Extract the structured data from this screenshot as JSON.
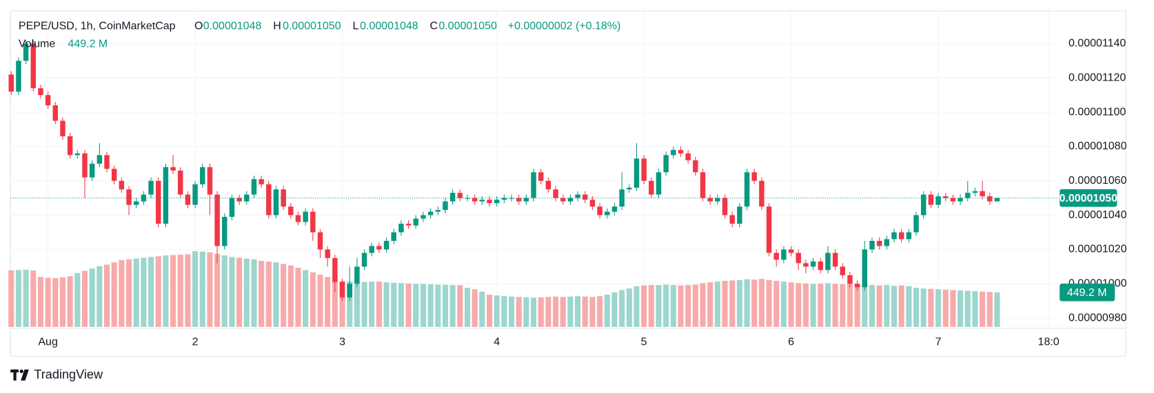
{
  "chart_data": {
    "type": "candlestick",
    "title": "PEPE/USD, 1h, CoinMarketCap",
    "ohlc": [
      {
        "label": "O",
        "value": "0.00001048"
      },
      {
        "label": "H",
        "value": "0.00001050"
      },
      {
        "label": "L",
        "value": "0.00001048"
      },
      {
        "label": "C",
        "value": "0.00001050"
      }
    ],
    "change": "+0.00000002 (+0.18%)",
    "volume_title": "Volume",
    "volume_value_label": "449.2 M",
    "last_price": {
      "value": 1.05e-05,
      "label": "0.00001050"
    },
    "up_color": "#089981",
    "down_color": "#f23645",
    "volume_up_color": "#9cd6cd",
    "volume_down_color": "#f8aaab",
    "grid": true,
    "ylim": [
      9.74e-06,
      1.159e-05
    ],
    "yticks": [
      {
        "value": 9.8e-06,
        "label": "0.00000980"
      },
      {
        "value": 1e-05,
        "label": "0.00001000"
      },
      {
        "value": 1.02e-05,
        "label": "0.00001020"
      },
      {
        "value": 1.04e-05,
        "label": "0.00001040"
      },
      {
        "value": 1.06e-05,
        "label": "0.00001060"
      },
      {
        "value": 1.08e-05,
        "label": "0.00001080"
      },
      {
        "value": 1.1e-05,
        "label": "0.00001100"
      },
      {
        "value": 1.12e-05,
        "label": "0.00001120"
      },
      {
        "value": 1.14e-05,
        "label": "0.00001140"
      }
    ],
    "xlim": [
      -0.1,
      142.5
    ],
    "xticks": [
      {
        "value": 5,
        "label": "Aug"
      },
      {
        "value": 25,
        "label": "2"
      },
      {
        "value": 45,
        "label": "3"
      },
      {
        "value": 66,
        "label": "4"
      },
      {
        "value": 86,
        "label": "5"
      },
      {
        "value": 106,
        "label": "6"
      },
      {
        "value": 126,
        "label": "7"
      },
      {
        "value": 141,
        "label": "18:0"
      }
    ],
    "x": [
      0,
      1,
      2,
      3,
      4,
      5,
      6,
      7,
      8,
      9,
      10,
      11,
      12,
      13,
      14,
      15,
      16,
      17,
      18,
      19,
      20,
      21,
      22,
      23,
      24,
      25,
      26,
      27,
      28,
      29,
      30,
      31,
      32,
      33,
      34,
      35,
      36,
      37,
      38,
      39,
      40,
      41,
      42,
      43,
      44,
      45,
      46,
      47,
      48,
      49,
      50,
      51,
      52,
      53,
      54,
      55,
      56,
      57,
      58,
      59,
      60,
      61,
      62,
      63,
      64,
      65,
      66,
      67,
      68,
      69,
      70,
      71,
      72,
      73,
      74,
      75,
      76,
      77,
      78,
      79,
      80,
      81,
      82,
      83,
      84,
      85,
      86,
      87,
      88,
      89,
      90,
      91,
      92,
      93,
      94,
      95,
      96,
      97,
      98,
      99,
      100,
      101,
      102,
      103,
      104,
      105,
      106,
      107,
      108,
      109,
      110,
      111,
      112,
      113,
      114,
      115,
      116,
      117,
      118,
      119,
      120,
      121,
      122,
      123,
      124,
      125,
      126,
      127,
      128,
      129,
      130,
      131,
      132,
      133,
      134
    ],
    "open": [
      1.122e-05,
      1.112e-05,
      1.13e-05,
      1.14e-05,
      1.114e-05,
      1.11e-05,
      1.104e-05,
      1.095e-05,
      1.086e-05,
      1.075e-05,
      1.076e-05,
      1.062e-05,
      1.07e-05,
      1.075e-05,
      1.067e-05,
      1.06e-05,
      1.055e-05,
      1.046e-05,
      1.048e-05,
      1.052e-05,
      1.06e-05,
      1.035e-05,
      1.068e-05,
      1.066e-05,
      1.052e-05,
      1.046e-05,
      1.058e-05,
      1.068e-05,
      1.052e-05,
      1.022e-05,
      1.039e-05,
      1.05e-05,
      1.048e-05,
      1.052e-05,
      1.061e-05,
      1.058e-05,
      1.04e-05,
      1.055e-05,
      1.045e-05,
      1.04e-05,
      1.036e-05,
      1.042e-05,
      1.03e-05,
      1.02e-05,
      1.015e-05,
      1.001e-05,
      9.92e-06,
      1e-05,
      1.01e-05,
      1.018e-05,
      1.022e-05,
      1.02e-05,
      1.025e-05,
      1.03e-05,
      1.035e-05,
      1.034e-05,
      1.038e-05,
      1.04e-05,
      1.042e-05,
      1.043e-05,
      1.048e-05,
      1.053e-05,
      1.05e-05,
      1.05e-05,
      1.048e-05,
      1.049e-05,
      1.047e-05,
      1.049e-05,
      1.05e-05,
      1.05e-05,
      1.048e-05,
      1.05e-05,
      1.065e-05,
      1.06e-05,
      1.055e-05,
      1.05e-05,
      1.048e-05,
      1.05e-05,
      1.052e-05,
      1.049e-05,
      1.045e-05,
      1.04e-05,
      1.042e-05,
      1.045e-05,
      1.055e-05,
      1.056e-05,
      1.073e-05,
      1.06e-05,
      1.052e-05,
      1.065e-05,
      1.075e-05,
      1.078e-05,
      1.076e-05,
      1.072e-05,
      1.065e-05,
      1.05e-05,
      1.048e-05,
      1.05e-05,
      1.04e-05,
      1.035e-05,
      1.045e-05,
      1.065e-05,
      1.06e-05,
      1.045e-05,
      1.018e-05,
      1.014e-05,
      1.02e-05,
      1.018e-05,
      1.012e-05,
      1.01e-05,
      1.013e-05,
      1.008e-05,
      1.018e-05,
      1.01e-05,
      1.005e-05,
      1e-05,
      9.98e-06,
      1.02e-05,
      1.025e-05,
      1.022e-05,
      1.026e-05,
      1.03e-05,
      1.026e-05,
      1.03e-05,
      1.04e-05,
      1.052e-05,
      1.046e-05,
      1.051e-05,
      1.05e-05,
      1.048e-05,
      1.05e-05,
      1.053e-05,
      1.054e-05,
      1.051e-05,
      1.048e-05
    ],
    "high": [
      1.124e-05,
      1.132e-05,
      1.142e-05,
      1.142e-05,
      1.116e-05,
      1.112e-05,
      1.106e-05,
      1.097e-05,
      1.088e-05,
      1.078e-05,
      1.078e-05,
      1.072e-05,
      1.082e-05,
      1.077e-05,
      1.069e-05,
      1.062e-05,
      1.057e-05,
      1.05e-05,
      1.054e-05,
      1.062e-05,
      1.062e-05,
      1.07e-05,
      1.075e-05,
      1.068e-05,
      1.054e-05,
      1.06e-05,
      1.07e-05,
      1.07e-05,
      1.054e-05,
      1.041e-05,
      1.052e-05,
      1.052e-05,
      1.054e-05,
      1.063e-05,
      1.063e-05,
      1.06e-05,
      1.057e-05,
      1.057e-05,
      1.047e-05,
      1.042e-05,
      1.044e-05,
      1.044e-05,
      1.032e-05,
      1.022e-05,
      1.017e-05,
      1.003e-05,
      1.01e-05,
      1.015e-05,
      1.02e-05,
      1.024e-05,
      1.024e-05,
      1.027e-05,
      1.032e-05,
      1.037e-05,
      1.037e-05,
      1.04e-05,
      1.042e-05,
      1.044e-05,
      1.045e-05,
      1.05e-05,
      1.055e-05,
      1.055e-05,
      1.052e-05,
      1.052e-05,
      1.051e-05,
      1.051e-05,
      1.051e-05,
      1.052e-05,
      1.052e-05,
      1.052e-05,
      1.052e-05,
      1.067e-05,
      1.067e-05,
      1.062e-05,
      1.057e-05,
      1.052e-05,
      1.052e-05,
      1.054e-05,
      1.054e-05,
      1.051e-05,
      1.047e-05,
      1.044e-05,
      1.047e-05,
      1.065e-05,
      1.058e-05,
      1.082e-05,
      1.075e-05,
      1.062e-05,
      1.067e-05,
      1.077e-05,
      1.08e-05,
      1.08e-05,
      1.078e-05,
      1.074e-05,
      1.067e-05,
      1.052e-05,
      1.052e-05,
      1.052e-05,
      1.042e-05,
      1.047e-05,
      1.067e-05,
      1.067e-05,
      1.062e-05,
      1.047e-05,
      1.02e-05,
      1.022e-05,
      1.022e-05,
      1.02e-05,
      1.014e-05,
      1.015e-05,
      1.015e-05,
      1.022e-05,
      1.02e-05,
      1.012e-05,
      1.007e-05,
      1.002e-05,
      1.025e-05,
      1.027e-05,
      1.027e-05,
      1.028e-05,
      1.032e-05,
      1.032e-05,
      1.032e-05,
      1.042e-05,
      1.054e-05,
      1.054e-05,
      1.053e-05,
      1.053e-05,
      1.052e-05,
      1.052e-05,
      1.06e-05,
      1.056e-05,
      1.06e-05,
      1.053e-05,
      1.05e-05
    ],
    "low": [
      1.11e-05,
      1.11e-05,
      1.128e-05,
      1.112e-05,
      1.108e-05,
      1.102e-05,
      1.093e-05,
      1.084e-05,
      1.073e-05,
      1.073e-05,
      1.05e-05,
      1.06e-05,
      1.068e-05,
      1.065e-05,
      1.058e-05,
      1.053e-05,
      1.04e-05,
      1.044e-05,
      1.046e-05,
      1.05e-05,
      1.033e-05,
      1.033e-05,
      1.064e-05,
      1.05e-05,
      1.044e-05,
      1.044e-05,
      1.056e-05,
      1.04e-05,
      1.012e-05,
      1.02e-05,
      1.037e-05,
      1.046e-05,
      1.046e-05,
      1.05e-05,
      1.056e-05,
      1.038e-05,
      1.038e-05,
      1.043e-05,
      1.038e-05,
      1.034e-05,
      1.034e-05,
      1.025e-05,
      1.015e-05,
      1.01e-05,
      9.95e-06,
      9.9e-06,
      9.9e-06,
      9.98e-06,
      1.008e-05,
      1.016e-05,
      1.018e-05,
      1.018e-05,
      1.023e-05,
      1.028e-05,
      1.032e-05,
      1.032e-05,
      1.036e-05,
      1.038e-05,
      1.04e-05,
      1.041e-05,
      1.046e-05,
      1.048e-05,
      1.048e-05,
      1.046e-05,
      1.046e-05,
      1.045e-05,
      1.045e-05,
      1.047e-05,
      1.048e-05,
      1.046e-05,
      1.046e-05,
      1.048e-05,
      1.058e-05,
      1.053e-05,
      1.048e-05,
      1.046e-05,
      1.046e-05,
      1.048e-05,
      1.047e-05,
      1.043e-05,
      1.038e-05,
      1.038e-05,
      1.04e-05,
      1.043e-05,
      1.053e-05,
      1.054e-05,
      1.058e-05,
      1.05e-05,
      1.05e-05,
      1.063e-05,
      1.073e-05,
      1.074e-05,
      1.07e-05,
      1.063e-05,
      1.048e-05,
      1.046e-05,
      1.046e-05,
      1.038e-05,
      1.033e-05,
      1.033e-05,
      1.043e-05,
      1.058e-05,
      1.043e-05,
      1.016e-05,
      1.01e-05,
      1.012e-05,
      1.016e-05,
      1.008e-05,
      1.006e-05,
      1.008e-05,
      1.006e-05,
      1.006e-05,
      1.008e-05,
      1.003e-05,
      9.98e-06,
      9.96e-06,
      9.96e-06,
      1.018e-05,
      1.02e-05,
      1.02e-05,
      1.024e-05,
      1.024e-05,
      1.024e-05,
      1.028e-05,
      1.038e-05,
      1.044e-05,
      1.044e-05,
      1.048e-05,
      1.046e-05,
      1.046e-05,
      1.048e-05,
      1.051e-05,
      1.049e-05,
      1.046e-05,
      1.048e-05
    ],
    "close": [
      1.112e-05,
      1.13e-05,
      1.14e-05,
      1.114e-05,
      1.11e-05,
      1.104e-05,
      1.095e-05,
      1.086e-05,
      1.075e-05,
      1.076e-05,
      1.062e-05,
      1.07e-05,
      1.075e-05,
      1.067e-05,
      1.06e-05,
      1.055e-05,
      1.046e-05,
      1.048e-05,
      1.052e-05,
      1.06e-05,
      1.035e-05,
      1.068e-05,
      1.066e-05,
      1.052e-05,
      1.046e-05,
      1.058e-05,
      1.068e-05,
      1.052e-05,
      1.022e-05,
      1.039e-05,
      1.05e-05,
      1.048e-05,
      1.052e-05,
      1.061e-05,
      1.058e-05,
      1.04e-05,
      1.055e-05,
      1.045e-05,
      1.04e-05,
      1.036e-05,
      1.042e-05,
      1.03e-05,
      1.02e-05,
      1.015e-05,
      1.001e-05,
      9.92e-06,
      1e-05,
      1.01e-05,
      1.018e-05,
      1.022e-05,
      1.02e-05,
      1.025e-05,
      1.03e-05,
      1.035e-05,
      1.034e-05,
      1.038e-05,
      1.04e-05,
      1.042e-05,
      1.043e-05,
      1.048e-05,
      1.053e-05,
      1.05e-05,
      1.05e-05,
      1.048e-05,
      1.049e-05,
      1.047e-05,
      1.049e-05,
      1.05e-05,
      1.05e-05,
      1.048e-05,
      1.05e-05,
      1.065e-05,
      1.06e-05,
      1.055e-05,
      1.05e-05,
      1.048e-05,
      1.05e-05,
      1.052e-05,
      1.049e-05,
      1.045e-05,
      1.04e-05,
      1.042e-05,
      1.045e-05,
      1.055e-05,
      1.056e-05,
      1.073e-05,
      1.06e-05,
      1.052e-05,
      1.065e-05,
      1.075e-05,
      1.078e-05,
      1.076e-05,
      1.072e-05,
      1.065e-05,
      1.05e-05,
      1.048e-05,
      1.05e-05,
      1.04e-05,
      1.035e-05,
      1.045e-05,
      1.065e-05,
      1.06e-05,
      1.045e-05,
      1.018e-05,
      1.014e-05,
      1.02e-05,
      1.018e-05,
      1.012e-05,
      1.01e-05,
      1.013e-05,
      1.008e-05,
      1.018e-05,
      1.01e-05,
      1.005e-05,
      1e-05,
      9.98e-06,
      1.02e-05,
      1.025e-05,
      1.022e-05,
      1.026e-05,
      1.03e-05,
      1.026e-05,
      1.03e-05,
      1.04e-05,
      1.052e-05,
      1.046e-05,
      1.051e-05,
      1.05e-05,
      1.048e-05,
      1.05e-05,
      1.053e-05,
      1.054e-05,
      1.051e-05,
      1.048e-05,
      1.05e-05
    ],
    "volume": [
      736,
      740,
      745,
      735,
      650,
      640,
      635,
      645,
      660,
      700,
      730,
      760,
      790,
      810,
      840,
      870,
      880,
      890,
      900,
      910,
      920,
      930,
      935,
      940,
      945,
      985,
      980,
      970,
      950,
      930,
      910,
      900,
      890,
      880,
      860,
      850,
      840,
      820,
      800,
      770,
      740,
      710,
      680,
      650,
      620,
      600,
      590,
      590,
      585,
      590,
      590,
      580,
      575,
      570,
      565,
      560,
      560,
      555,
      550,
      548,
      545,
      545,
      510,
      490,
      460,
      420,
      410,
      400,
      395,
      390,
      385,
      380,
      385,
      390,
      395,
      390,
      395,
      400,
      395,
      390,
      400,
      420,
      450,
      480,
      500,
      530,
      540,
      545,
      545,
      550,
      545,
      540,
      545,
      550,
      570,
      580,
      590,
      600,
      605,
      610,
      620,
      615,
      625,
      610,
      600,
      590,
      580,
      570,
      565,
      560,
      565,
      570,
      560,
      555,
      560,
      550,
      550,
      545,
      540,
      545,
      535,
      540,
      530,
      510,
      500,
      495,
      490,
      485,
      480,
      475,
      470,
      465,
      460,
      455,
      449.2
    ]
  },
  "brand": "TradingView"
}
